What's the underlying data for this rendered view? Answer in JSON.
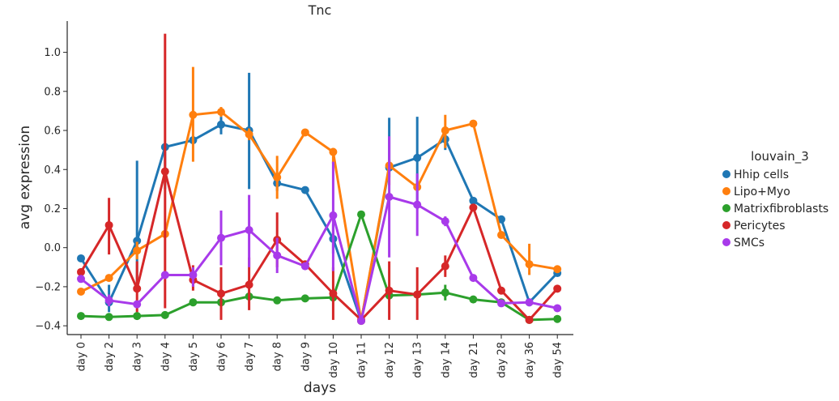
{
  "chart_data": {
    "type": "line",
    "title": "Tnc",
    "xlabel": "days",
    "ylabel": "avg expression",
    "ylim": [
      -0.445,
      1.16
    ],
    "yticks": [
      -0.4,
      -0.2,
      0.0,
      0.2,
      0.4,
      0.6,
      0.8,
      1.0
    ],
    "ytick_labels": [
      "−0.4",
      "−0.2",
      "0.0",
      "0.2",
      "0.4",
      "0.6",
      "0.8",
      "1.0"
    ],
    "categories": [
      "day 0",
      "day 2",
      "day 3",
      "day 4",
      "day 5",
      "day 6",
      "day 7",
      "day 8",
      "day 9",
      "day 10",
      "day 11",
      "day 12",
      "day 13",
      "day 14",
      "day 21",
      "day 28",
      "day 36",
      "day 54"
    ],
    "grid": false,
    "legend": {
      "title": "louvain_3",
      "placement": "right"
    },
    "series": [
      {
        "name": "Hhip cells",
        "color": "#1f77b4",
        "values": [
          -0.055,
          -0.28,
          0.035,
          0.515,
          0.55,
          0.63,
          0.6,
          0.33,
          0.295,
          0.045,
          -0.375,
          0.41,
          0.46,
          0.555,
          0.24,
          0.145,
          -0.28,
          -0.13
        ],
        "ci": [
          null,
          [
            -0.33,
            -0.19
          ],
          [
            -0.2,
            0.445
          ],
          [
            0.3,
            0.5
          ],
          [
            0.53,
            0.57
          ],
          [
            0.58,
            0.67
          ],
          [
            0.3,
            0.895
          ],
          [
            0.29,
            0.37
          ],
          null,
          [
            -0.03,
            0.12
          ],
          null,
          [
            0.36,
            0.665
          ],
          [
            0.24,
            0.67
          ],
          [
            0.5,
            0.58
          ],
          null,
          null,
          null,
          null
        ]
      },
      {
        "name": "Lipo+Myo",
        "color": "#ff7f0e",
        "values": [
          -0.225,
          -0.155,
          -0.015,
          0.07,
          0.68,
          0.695,
          0.58,
          0.36,
          0.59,
          0.49,
          -0.375,
          0.42,
          0.31,
          0.6,
          0.635,
          0.065,
          -0.085,
          -0.11
        ],
        "ci": [
          null,
          null,
          [
            -0.06,
            0.03
          ],
          null,
          [
            0.44,
            0.925
          ],
          [
            0.67,
            0.72
          ],
          [
            0.55,
            0.61
          ],
          [
            0.25,
            0.47
          ],
          null,
          [
            0.43,
            0.51
          ],
          null,
          [
            0.32,
            0.45
          ],
          null,
          [
            0.51,
            0.68
          ],
          null,
          null,
          [
            -0.14,
            0.02
          ],
          null
        ]
      },
      {
        "name": "Matrixfibroblasts",
        "color": "#2ca02c",
        "values": [
          -0.35,
          -0.355,
          -0.35,
          -0.345,
          -0.28,
          -0.28,
          -0.25,
          -0.27,
          -0.26,
          -0.255,
          0.17,
          -0.245,
          -0.24,
          -0.23,
          -0.265,
          -0.28,
          -0.37,
          -0.365
        ],
        "ci": [
          null,
          [
            -0.365,
            -0.345
          ],
          [
            -0.37,
            -0.33
          ],
          null,
          [
            -0.3,
            -0.26
          ],
          null,
          [
            -0.27,
            -0.23
          ],
          null,
          null,
          [
            -0.27,
            -0.24
          ],
          null,
          [
            -0.26,
            -0.23
          ],
          null,
          [
            -0.27,
            -0.19
          ],
          null,
          null,
          null,
          null
        ]
      },
      {
        "name": "Pericytes",
        "color": "#d62728",
        "values": [
          -0.125,
          0.115,
          -0.21,
          0.39,
          -0.165,
          -0.235,
          -0.19,
          0.04,
          -0.085,
          -0.235,
          -0.37,
          -0.22,
          -0.24,
          -0.095,
          0.205,
          -0.22,
          -0.37,
          -0.21
        ],
        "ci": [
          null,
          [
            -0.035,
            0.255
          ],
          [
            -0.33,
            -0.07
          ],
          [
            -0.31,
            1.095
          ],
          [
            -0.22,
            -0.09
          ],
          [
            -0.37,
            -0.1
          ],
          [
            -0.32,
            -0.05
          ],
          [
            -0.1,
            0.18
          ],
          null,
          [
            -0.37,
            -0.1
          ],
          null,
          [
            -0.37,
            -0.07
          ],
          [
            -0.37,
            -0.1
          ],
          [
            -0.15,
            -0.04
          ],
          null,
          null,
          null,
          null
        ]
      },
      {
        "name": "SMCs",
        "color": "#a83aea",
        "values": [
          -0.16,
          -0.27,
          -0.29,
          -0.14,
          -0.14,
          0.05,
          0.09,
          -0.04,
          -0.095,
          0.165,
          -0.375,
          0.26,
          0.22,
          0.135,
          -0.155,
          -0.285,
          -0.28,
          -0.31
        ],
        "ci": [
          null,
          [
            -0.3,
            -0.24
          ],
          [
            -0.31,
            -0.27
          ],
          null,
          [
            -0.2,
            -0.1
          ],
          [
            -0.09,
            0.19
          ],
          [
            -0.1,
            0.27
          ],
          [
            -0.13,
            0.05
          ],
          null,
          [
            -0.12,
            0.44
          ],
          null,
          [
            -0.05,
            0.57
          ],
          [
            0.06,
            0.38
          ],
          [
            0.11,
            0.16
          ],
          null,
          null,
          null,
          null
        ]
      }
    ]
  }
}
